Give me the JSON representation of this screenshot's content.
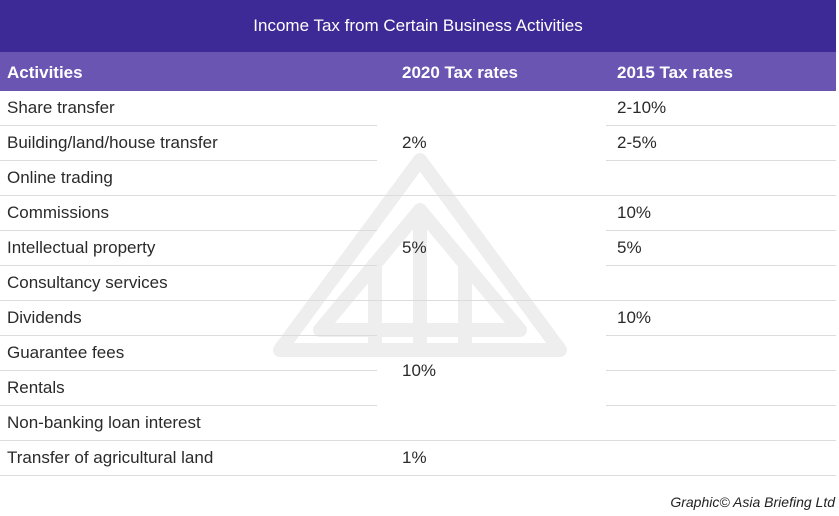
{
  "title": "Income Tax from Certain Business Activities",
  "headers": {
    "activities": "Activities",
    "rate_2020": "2020 Tax rates",
    "rate_2015": "2015 Tax rates"
  },
  "rows": [
    {
      "activity": "Share transfer",
      "rate_2015": "2-10%"
    },
    {
      "activity": "Building/land/house transfer",
      "rate_2015": "2-5%"
    },
    {
      "activity": "Online trading",
      "rate_2015": ""
    },
    {
      "activity": "Commissions",
      "rate_2015": "10%"
    },
    {
      "activity": "Intellectual property",
      "rate_2015": "5%"
    },
    {
      "activity": "Consultancy services",
      "rate_2015": ""
    },
    {
      "activity": "Dividends",
      "rate_2015": "10%"
    },
    {
      "activity": "Guarantee fees"
    },
    {
      "activity": "Rentals"
    },
    {
      "activity": "Non-banking loan interest"
    },
    {
      "activity": "Transfer of agricultural land"
    }
  ],
  "rate_groups_2020": [
    "2%",
    "5%",
    "10%",
    "1%"
  ],
  "credit": "Graphic© Asia Briefing Ltd",
  "colors": {
    "title_bg": "#3d2a96",
    "header_bg": "#6a55b2"
  }
}
